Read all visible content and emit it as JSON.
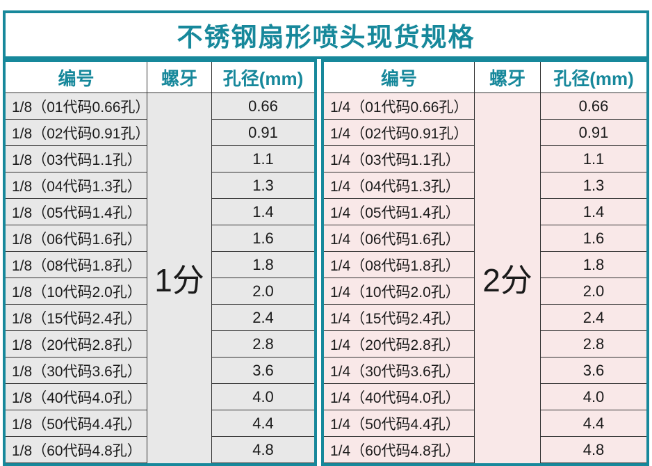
{
  "title": "不锈钢扇形喷头现货规格",
  "colors": {
    "teal_accent": "#17889b",
    "grid_line": "#2f2f2f",
    "left_table_row_bg": "#e8e8e8",
    "right_table_row_bg": "#f9e8e8",
    "text": "#1a1a1a"
  },
  "tables": [
    {
      "id": "left",
      "headers": [
        "编号",
        "螺牙",
        "孔径(mm)"
      ],
      "thread": "1分",
      "rows": [
        {
          "code": "1/8（01代码0.66孔）",
          "bore": "0.66"
        },
        {
          "code": "1/8（02代码0.91孔）",
          "bore": "0.91"
        },
        {
          "code": "1/8（03代码1.1孔）",
          "bore": "1.1"
        },
        {
          "code": "1/8（04代码1.3孔）",
          "bore": "1.3"
        },
        {
          "code": "1/8（05代码1.4孔）",
          "bore": "1.4"
        },
        {
          "code": "1/8（06代码1.6孔）",
          "bore": "1.6"
        },
        {
          "code": "1/8（08代码1.8孔）",
          "bore": "1.8"
        },
        {
          "code": "1/8（10代码2.0孔）",
          "bore": "2.0"
        },
        {
          "code": "1/8（15代码2.4孔）",
          "bore": "2.4"
        },
        {
          "code": "1/8（20代码2.8孔）",
          "bore": "2.8"
        },
        {
          "code": "1/8（30代码3.6孔）",
          "bore": "3.6"
        },
        {
          "code": "1/8（40代码4.0孔）",
          "bore": "4.0"
        },
        {
          "code": "1/8（50代码4.4孔）",
          "bore": "4.4"
        },
        {
          "code": "1/8（60代码4.8孔）",
          "bore": "4.8"
        }
      ]
    },
    {
      "id": "right",
      "headers": [
        "编号",
        "螺牙",
        "孔径(mm)"
      ],
      "thread": "2分",
      "rows": [
        {
          "code": "1/4（01代码0.66孔）",
          "bore": "0.66"
        },
        {
          "code": "1/4（02代码0.91孔）",
          "bore": "0.91"
        },
        {
          "code": "1/4（03代码1.1孔）",
          "bore": "1.1"
        },
        {
          "code": "1/4（04代码1.3孔）",
          "bore": "1.3"
        },
        {
          "code": "1/4（05代码1.4孔）",
          "bore": "1.4"
        },
        {
          "code": "1/4（06代码1.6孔）",
          "bore": "1.6"
        },
        {
          "code": "1/4（08代码1.8孔）",
          "bore": "1.8"
        },
        {
          "code": "1/4（10代码2.0孔）",
          "bore": "2.0"
        },
        {
          "code": "1/4（15代码2.4孔）",
          "bore": "2.4"
        },
        {
          "code": "1/4（20代码2.8孔）",
          "bore": "2.8"
        },
        {
          "code": "1/4（30代码3.6孔）",
          "bore": "3.6"
        },
        {
          "code": "1/4（40代码4.0孔）",
          "bore": "4.0"
        },
        {
          "code": "1/4（50代码4.4孔）",
          "bore": "4.4"
        },
        {
          "code": "1/4（60代码4.8孔）",
          "bore": "4.8"
        }
      ]
    }
  ]
}
